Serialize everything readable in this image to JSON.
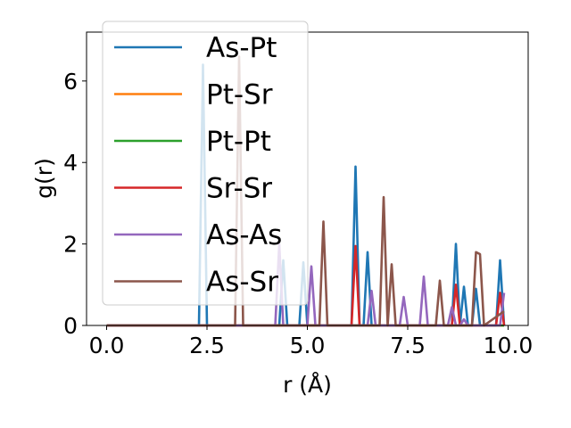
{
  "chart_data": {
    "type": "line",
    "xlabel": "r (Å)",
    "ylabel": "g(r)",
    "xlim": [
      -0.5,
      10.5
    ],
    "ylim": [
      0,
      7.2
    ],
    "xticks": [
      0.0,
      2.5,
      5.0,
      7.5,
      10.0
    ],
    "xtick_labels": [
      "0.0",
      "2.5",
      "5.0",
      "7.5",
      "10.0"
    ],
    "yticks": [
      0,
      2,
      4,
      6
    ],
    "ytick_labels": [
      "0",
      "2",
      "4",
      "6"
    ],
    "grid": false,
    "legend_position": "upper-left",
    "series": [
      {
        "name": "As-Pt",
        "color": "#1f77b4",
        "points": [
          [
            0,
            0
          ],
          [
            2.2,
            0
          ],
          [
            2.3,
            0
          ],
          [
            2.4,
            6.4
          ],
          [
            2.5,
            0
          ],
          [
            4.3,
            0
          ],
          [
            4.4,
            1.6
          ],
          [
            4.5,
            0
          ],
          [
            4.8,
            0
          ],
          [
            4.9,
            1.55
          ],
          [
            5.0,
            0
          ],
          [
            6.1,
            0
          ],
          [
            6.2,
            3.9
          ],
          [
            6.3,
            0
          ],
          [
            6.4,
            0
          ],
          [
            6.5,
            1.8
          ],
          [
            6.6,
            0
          ],
          [
            8.6,
            0
          ],
          [
            8.7,
            2.0
          ],
          [
            8.8,
            0
          ],
          [
            8.9,
            0.95
          ],
          [
            9.0,
            0
          ],
          [
            9.1,
            0
          ],
          [
            9.2,
            0.9
          ],
          [
            9.3,
            0
          ],
          [
            9.7,
            0
          ],
          [
            9.8,
            1.6
          ],
          [
            9.9,
            0
          ]
        ]
      },
      {
        "name": "Pt-Sr",
        "color": "#ff7f0e",
        "points": [
          [
            0,
            0
          ],
          [
            9.9,
            0
          ]
        ]
      },
      {
        "name": "Pt-Pt",
        "color": "#2ca02c",
        "points": [
          [
            0,
            0
          ],
          [
            9.9,
            0
          ]
        ]
      },
      {
        "name": "Sr-Sr",
        "color": "#d62728",
        "points": [
          [
            0,
            0
          ],
          [
            6.1,
            0
          ],
          [
            6.2,
            1.95
          ],
          [
            6.3,
            0
          ],
          [
            8.6,
            0
          ],
          [
            8.7,
            1.0
          ],
          [
            8.8,
            0
          ],
          [
            9.7,
            0
          ],
          [
            9.8,
            0.8
          ],
          [
            9.9,
            0
          ]
        ]
      },
      {
        "name": "As-As",
        "color": "#9467bd",
        "points": [
          [
            0,
            0
          ],
          [
            4.2,
            0
          ],
          [
            4.3,
            2.0
          ],
          [
            4.4,
            0
          ],
          [
            4.5,
            0
          ],
          [
            4.6,
            0
          ],
          [
            4.7,
            0
          ],
          [
            5.0,
            0
          ],
          [
            5.1,
            1.45
          ],
          [
            5.2,
            0
          ],
          [
            6.5,
            0
          ],
          [
            6.6,
            0.85
          ],
          [
            6.7,
            0
          ],
          [
            7.3,
            0
          ],
          [
            7.4,
            0.7
          ],
          [
            7.5,
            0
          ],
          [
            7.8,
            0
          ],
          [
            7.9,
            1.2
          ],
          [
            8.0,
            0
          ],
          [
            8.5,
            0
          ],
          [
            8.6,
            0.45
          ],
          [
            8.7,
            0
          ],
          [
            8.8,
            0
          ],
          [
            8.9,
            0.15
          ],
          [
            9.0,
            0
          ],
          [
            9.8,
            0
          ],
          [
            9.9,
            0.8
          ]
        ]
      },
      {
        "name": "As-Sr",
        "color": "#8c564b",
        "points": [
          [
            0,
            0
          ],
          [
            3.2,
            0
          ],
          [
            3.3,
            6.6
          ],
          [
            3.4,
            0
          ],
          [
            5.3,
            0
          ],
          [
            5.4,
            2.55
          ],
          [
            5.5,
            0
          ],
          [
            6.8,
            0
          ],
          [
            6.9,
            3.15
          ],
          [
            7.0,
            0
          ],
          [
            7.1,
            1.5
          ],
          [
            7.2,
            0
          ],
          [
            8.2,
            0
          ],
          [
            8.3,
            1.1
          ],
          [
            8.4,
            0
          ],
          [
            9.1,
            0
          ],
          [
            9.2,
            1.8
          ],
          [
            9.3,
            1.75
          ],
          [
            9.4,
            0
          ],
          [
            9.9,
            0.35
          ]
        ]
      }
    ]
  }
}
